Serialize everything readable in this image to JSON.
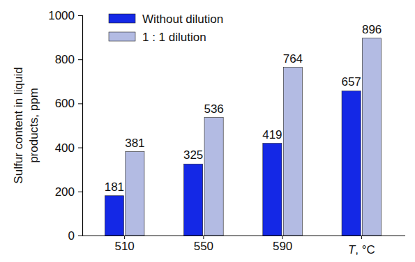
{
  "chart_data": {
    "type": "bar",
    "y_label": [
      "Sulfur content in liquid",
      "products, ppm"
    ],
    "x_label": "T, °C",
    "categories": [
      "510",
      "550",
      "590",
      null
    ],
    "series": [
      {
        "name": "Without dilution",
        "color": "#1428e6",
        "values": [
          181,
          325,
          419,
          657
        ]
      },
      {
        "name": "1 : 1 dilution",
        "color": "#b3bbe3",
        "values": [
          381,
          536,
          764,
          896
        ]
      }
    ],
    "ylim": [
      0,
      1000
    ],
    "yticks": [
      0,
      200,
      400,
      600,
      800,
      1000
    ],
    "data_labels": true,
    "legend": "upper left"
  }
}
